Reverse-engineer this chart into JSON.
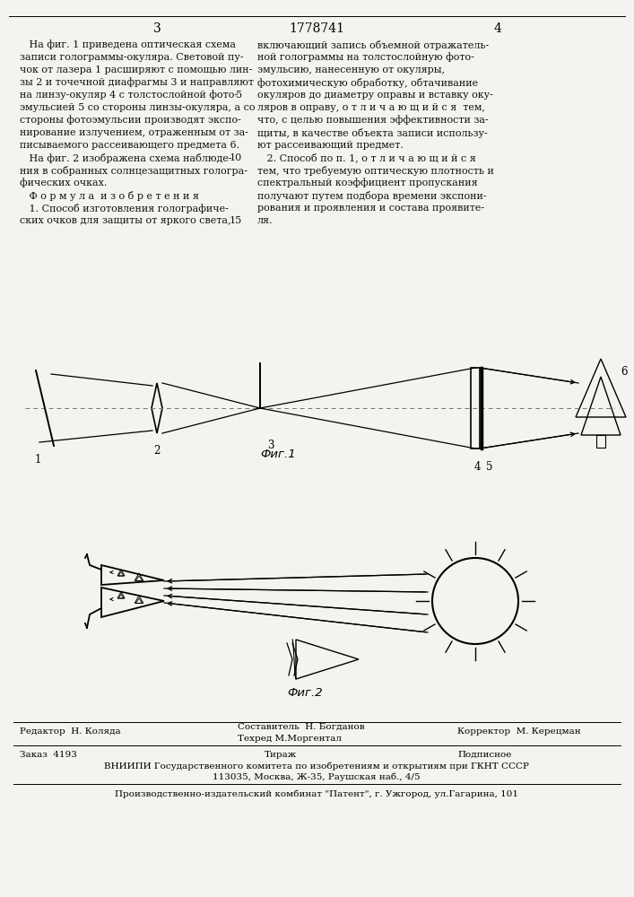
{
  "page_width": 7.07,
  "page_height": 10.0,
  "bg_color": "#f5f3ef",
  "left_col_texts": [
    "   На фиг. 1 приведена оптическая схема",
    "записи голограммы-окуляра. Световой пу-",
    "чок от лазера 1 расширяют с помощью лин-",
    "зы 2 и точечной диафрагмы 3 и направляют",
    "на линзу-окуляр 4 с толстослойной фото-",
    "эмульсией 5 со стороны линзы-окуляра, а со",
    "стороны фотоэмульсии производят экспо-",
    "нирование излучением, отраженным от за-",
    "писываемого рассеивающего предмета 6.",
    "   На фиг. 2 изображена схема наблюде-",
    "ния в собранных солнцезащитных гологра-",
    "фических очках.",
    "   Ф о р м у л а  и з о б р е т е н и я",
    "   1. Способ изготовления голографиче-",
    "ских очков для защиты от яркого света,"
  ],
  "right_col_texts": [
    "включающий запись объемной отражатель-",
    "ной голограммы на толстослойную фото-",
    "эмульсию, нанесенную от окуляры,",
    "фотохимическую обработку, обтачивание",
    "окуляров до диаметру оправы и вставку оку-",
    "ляров в оправу, о т л и ч а ю щ и й с я  тем,",
    "что, с целью повышения эффективности за-",
    "щиты, в качестве объекта записи использу-",
    "ют рассеивающий предмет.",
    "   2. Способ по п. 1, о т л и ч а ю щ и й с я",
    "тем, что требуемую оптическую плотность и",
    "спектральный коэффициент пропускания",
    "получают путем подбора времени экспони-",
    "рования и проявления и состава проявите-",
    "ля."
  ],
  "fig1_caption": "Фиг.1",
  "fig2_caption": "Фиг.2",
  "header_num": "1778741",
  "page_l": "3",
  "page_r": "4"
}
